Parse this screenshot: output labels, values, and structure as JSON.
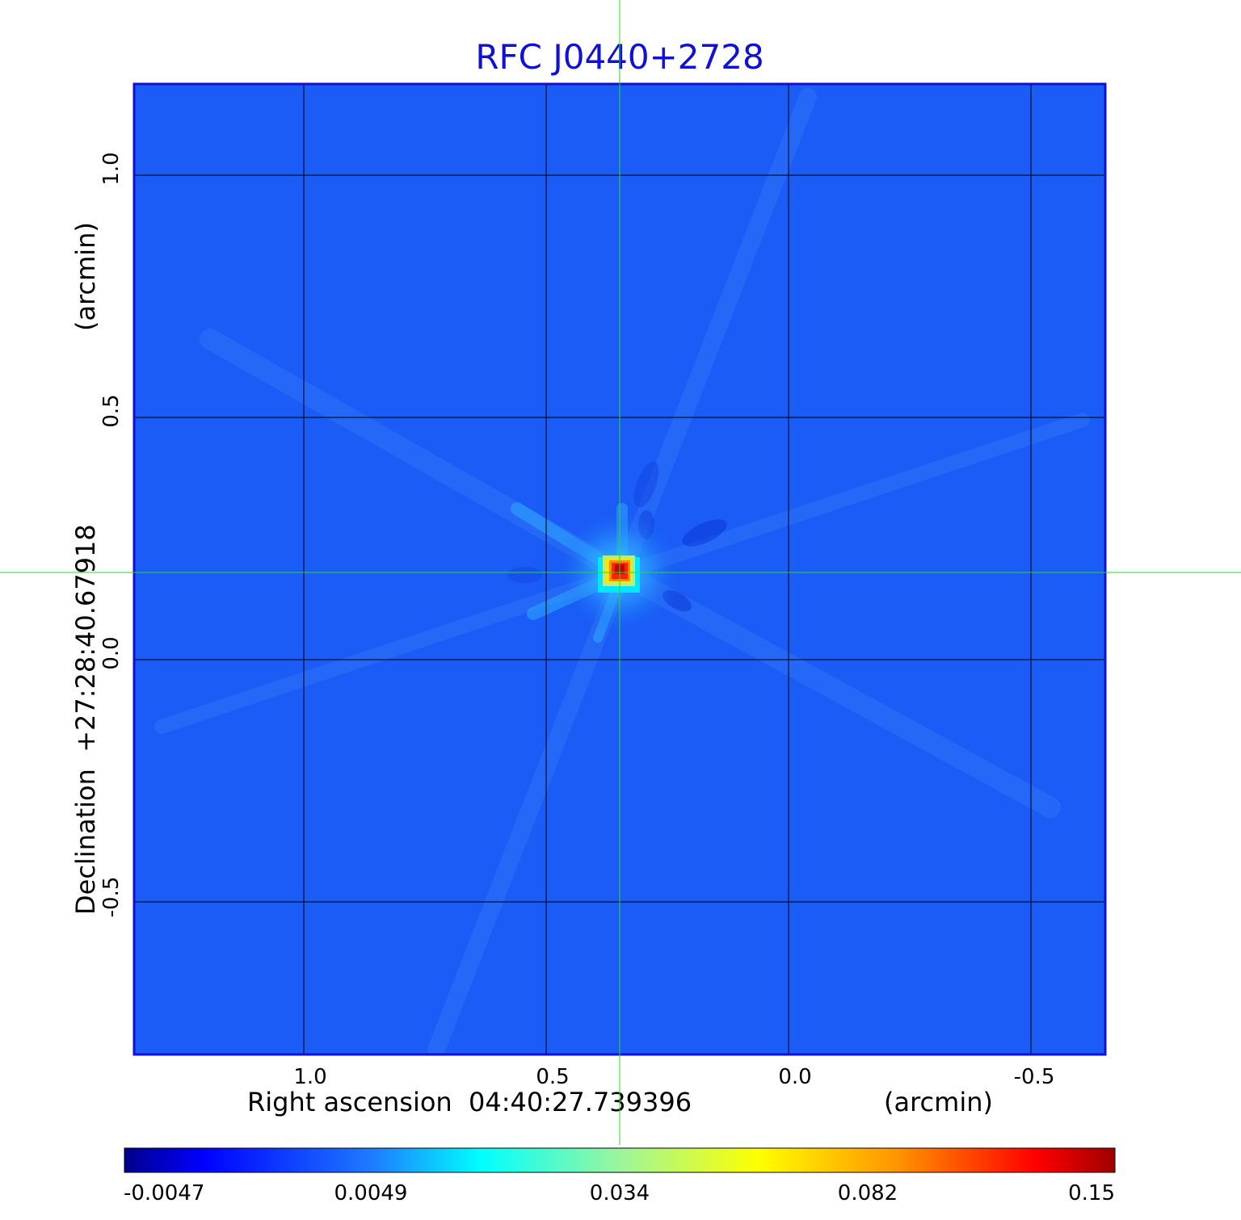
{
  "chart_data": {
    "type": "heatmap",
    "title": "RFC J0440+2728",
    "xlabel": "Right ascension  04:40:27.739396",
    "xunit": "(arcmin)",
    "ylabel": "Declination  +27:28:40.67918",
    "yunit": "(arcmin)",
    "x_ticks": [
      "1.0",
      "0.5",
      "0.0",
      "-0.5"
    ],
    "y_ticks": [
      "1.0",
      "0.5",
      "0.0",
      "-0.5"
    ],
    "xlim": [
      1.35,
      -0.65
    ],
    "ylim": [
      -0.8,
      1.19
    ],
    "grid": true,
    "crosshair": {
      "x": 0.35,
      "y": 0.18,
      "color": "#22dd22"
    },
    "source_peak": {
      "x": 0.35,
      "y": 0.18,
      "value": 0.15
    },
    "colormap": "jet",
    "colorbar": {
      "ticks": [
        "-0.0047",
        "0.0049",
        "0.034",
        "0.082",
        "0.15"
      ],
      "min": -0.0047,
      "max": 0.15
    },
    "background_color": "#1a5cf5"
  }
}
